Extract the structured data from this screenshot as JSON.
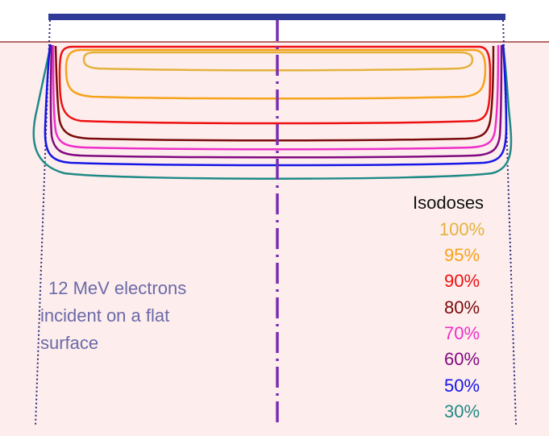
{
  "caption": {
    "lines": [
      "12 MeV electrons",
      "incident on a flat",
      "surface"
    ]
  },
  "legend": {
    "title": "Isodoses",
    "items": [
      {
        "label": "100%",
        "color": "#e3b23c"
      },
      {
        "label": "95%",
        "color": "#f7a21b"
      },
      {
        "label": "90%",
        "color": "#ee1111"
      },
      {
        "label": "80%",
        "color": "#7a0a0a"
      },
      {
        "label": "70%",
        "color": "#ee2fc8"
      },
      {
        "label": "60%",
        "color": "#800a80"
      },
      {
        "label": "50%",
        "color": "#1515e6"
      },
      {
        "label": "30%",
        "color": "#1f8a86"
      }
    ]
  },
  "colors": {
    "phantom": "#fdeded",
    "surface_line": "#9e3a3a",
    "applicator": "#2f3a99",
    "field_edge": "#2a2a7a",
    "central_axis": "#7a2fb3"
  }
}
